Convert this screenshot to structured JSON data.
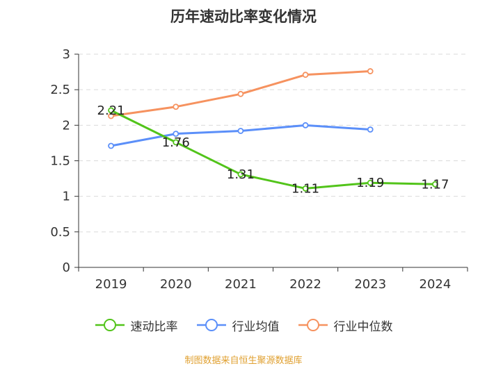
{
  "chart_data": {
    "type": "line",
    "title": "历年速动比率变化情况",
    "categories": [
      "2019",
      "2020",
      "2021",
      "2022",
      "2023",
      "2024"
    ],
    "ylim": [
      0,
      3
    ],
    "yticks": [
      "0",
      "0.5",
      "1",
      "1.5",
      "2",
      "2.5",
      "3"
    ],
    "grid": true,
    "series": [
      {
        "name": "速动比率",
        "color": "#52c41a",
        "values": [
          2.21,
          1.76,
          1.31,
          1.11,
          1.19,
          1.17
        ],
        "labels": [
          "2.21",
          "1.76",
          "1.31",
          "1.11",
          "1.19",
          "1.17"
        ]
      },
      {
        "name": "行业均值",
        "color": "#5b8ff9",
        "values": [
          1.71,
          1.88,
          1.92,
          2.0,
          1.94,
          null
        ]
      },
      {
        "name": "行业中位数",
        "color": "#f6925f",
        "values": [
          2.13,
          2.26,
          2.44,
          2.71,
          2.76,
          null
        ]
      }
    ]
  },
  "source": {
    "text": "制图数据来自恒生聚源数据库",
    "color": "#e0a030"
  }
}
